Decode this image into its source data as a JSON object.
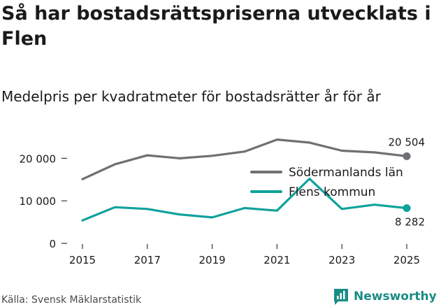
{
  "header": {
    "title": "Så har bostadsrättspriserna utvecklats i Flen",
    "subtitle": "Medelpris per kvadratmeter för bostadsrätter år för år"
  },
  "footer": {
    "source": "Källa: Svensk Mäklarstatistik",
    "brand": "Newsworthy"
  },
  "colors": {
    "sodermanland": "#6f6f74",
    "flen": "#10a29c",
    "axis": "#333333",
    "text": "#1a1a1a"
  },
  "chart_data": {
    "type": "line",
    "title": "Medelpris per kvadratmeter för bostadsrätter år för år",
    "xlabel": "",
    "ylabel": "",
    "x": [
      2015,
      2016,
      2017,
      2018,
      2019,
      2020,
      2021,
      2022,
      2023,
      2024,
      2025
    ],
    "xlim": [
      2015,
      2025
    ],
    "ylim": [
      0,
      25000
    ],
    "x_ticks": [
      "2015",
      "2017",
      "2019",
      "2021",
      "2023",
      "2025"
    ],
    "y_ticks": [
      "0",
      "10 000",
      "20 000"
    ],
    "y_tick_values": [
      0,
      10000,
      20000
    ],
    "legend_position": "right",
    "series": [
      {
        "name": "Södermanlands län",
        "color_key": "sodermanland",
        "values": [
          15100,
          18600,
          20700,
          20000,
          20600,
          21600,
          24400,
          23700,
          21800,
          21400,
          20504
        ],
        "end_label": "20 504"
      },
      {
        "name": "Flens kommun",
        "color_key": "flen",
        "values": [
          5400,
          8500,
          8100,
          6800,
          6100,
          8300,
          7700,
          15200,
          8100,
          9100,
          8282
        ],
        "end_label": "8 282"
      }
    ]
  }
}
